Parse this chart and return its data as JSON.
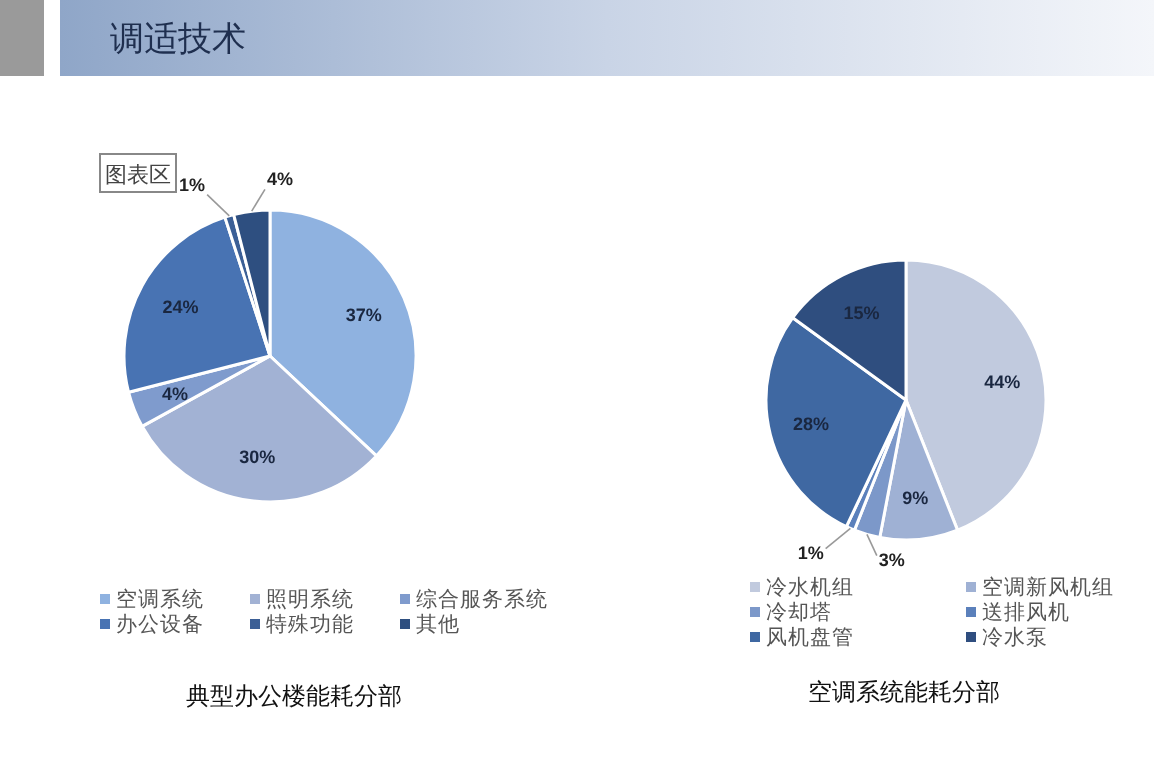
{
  "chart_data": [
    {
      "type": "pie",
      "title": "典型办公楼能耗分部",
      "categories": [
        "空调系统",
        "照明系统",
        "综合服务系统",
        "办公设备",
        "特殊功能",
        "其他"
      ],
      "values": [
        37,
        30,
        4,
        24,
        1,
        4
      ],
      "value_labels": [
        "37%",
        "30%",
        "4%",
        "24%",
        "1%",
        "4%"
      ],
      "colors": [
        "#8fb2e0",
        "#a2b2d4",
        "#7f9bcd",
        "#4873b3",
        "#3b5f96",
        "#2e4f80"
      ],
      "legend": "bottom",
      "annotations": [
        "调适技术",
        "图表区"
      ]
    },
    {
      "type": "pie",
      "title": "空调系统能耗分部",
      "categories": [
        "冷水机组",
        "空调新风机组",
        "冷却塔",
        "送排风机",
        "风机盘管",
        "冷水泵"
      ],
      "values": [
        44,
        9,
        3,
        1,
        28,
        15
      ],
      "value_labels": [
        "44%",
        "9%",
        "3%",
        "1%",
        "28%",
        "15%"
      ],
      "colors": [
        "#c1cade",
        "#9fb1d4",
        "#7c98c9",
        "#5b80bb",
        "#3f68a2",
        "#2f4e7f"
      ],
      "legend": "bottom"
    }
  ]
}
